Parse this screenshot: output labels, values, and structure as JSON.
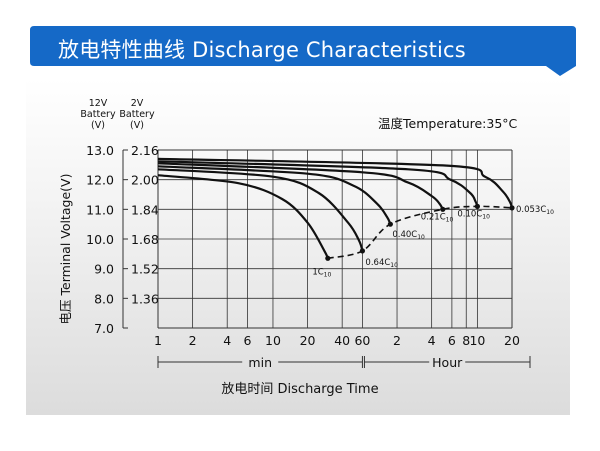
{
  "banner": {
    "title": "放电特性曲线 Discharge Characteristics",
    "color": "#1569c7"
  },
  "chart_data": {
    "type": "line",
    "title": "",
    "temperature_note": "温度Temperature:35°C",
    "ylabel": "电压 Terminal Voltage(V)",
    "xlabel": "放电时间 Discharge Time",
    "y_axes": [
      {
        "header": [
          "12V",
          "Battery",
          "(V)"
        ],
        "ticks": [
          "13.0",
          "12.0",
          "11.0",
          "10.0",
          "9.0",
          "8.0",
          "7.0"
        ]
      },
      {
        "header": [
          "2V",
          "Battery",
          "(V)"
        ],
        "ticks": [
          "2.16",
          "2.00",
          "1.84",
          "1.68",
          "1.52",
          "1.36"
        ]
      }
    ],
    "ylim_12v": [
      7.0,
      13.0
    ],
    "x_scale": "log",
    "x_unit_ranges": [
      {
        "label": "min",
        "ticks": [
          "1",
          "2",
          "4",
          "6",
          "10",
          "20",
          "40",
          "60"
        ]
      },
      {
        "label": "Hour",
        "ticks": [
          "2",
          "4",
          "6",
          "8",
          "10",
          "20"
        ]
      }
    ],
    "x_tick_minutes": [
      1,
      2,
      4,
      6,
      10,
      20,
      40,
      60,
      120,
      240,
      360,
      480,
      600,
      1200
    ],
    "grid": true,
    "series": [
      {
        "name": "1C10",
        "base": "1C",
        "sub": "10",
        "points": [
          [
            1,
            12.15
          ],
          [
            5,
            11.88
          ],
          [
            12,
            11.35
          ],
          [
            20,
            10.55
          ],
          [
            28,
            9.6
          ],
          [
            30,
            9.35
          ]
        ]
      },
      {
        "name": "0.64C10",
        "base": "0.64C",
        "sub": "10",
        "points": [
          [
            1,
            12.35
          ],
          [
            10,
            12.1
          ],
          [
            25,
            11.55
          ],
          [
            45,
            10.55
          ],
          [
            56,
            9.95
          ],
          [
            60,
            9.6
          ]
        ]
      },
      {
        "name": "0.40C10",
        "base": "0.40C",
        "sub": "10",
        "points": [
          [
            1,
            12.45
          ],
          [
            20,
            12.2
          ],
          [
            50,
            11.8
          ],
          [
            80,
            11.2
          ],
          [
            98,
            10.75
          ],
          [
            105,
            10.5
          ]
        ]
      },
      {
        "name": "0.21C10",
        "base": "0.21C",
        "sub": "10",
        "points": [
          [
            1,
            12.55
          ],
          [
            60,
            12.25
          ],
          [
            150,
            11.9
          ],
          [
            240,
            11.45
          ],
          [
            280,
            11.2
          ],
          [
            300,
            11.0
          ]
        ]
      },
      {
        "name": "0.10C10",
        "base": "0.10C",
        "sub": "10",
        "points": [
          [
            1,
            12.62
          ],
          [
            150,
            12.35
          ],
          [
            350,
            12.0
          ],
          [
            520,
            11.55
          ],
          [
            580,
            11.25
          ],
          [
            600,
            11.1
          ]
        ]
      },
      {
        "name": "0.053C10",
        "base": "0.053C",
        "sub": "10",
        "points": [
          [
            1,
            12.7
          ],
          [
            300,
            12.48
          ],
          [
            700,
            12.1
          ],
          [
            1000,
            11.6
          ],
          [
            1150,
            11.25
          ],
          [
            1200,
            11.05
          ]
        ]
      }
    ],
    "cutoff_line": {
      "style": "dashed",
      "points": [
        [
          30,
          9.35
        ],
        [
          60,
          9.6
        ],
        [
          105,
          10.5
        ],
        [
          300,
          11.0
        ],
        [
          600,
          11.1
        ],
        [
          1200,
          11.05
        ]
      ]
    }
  }
}
